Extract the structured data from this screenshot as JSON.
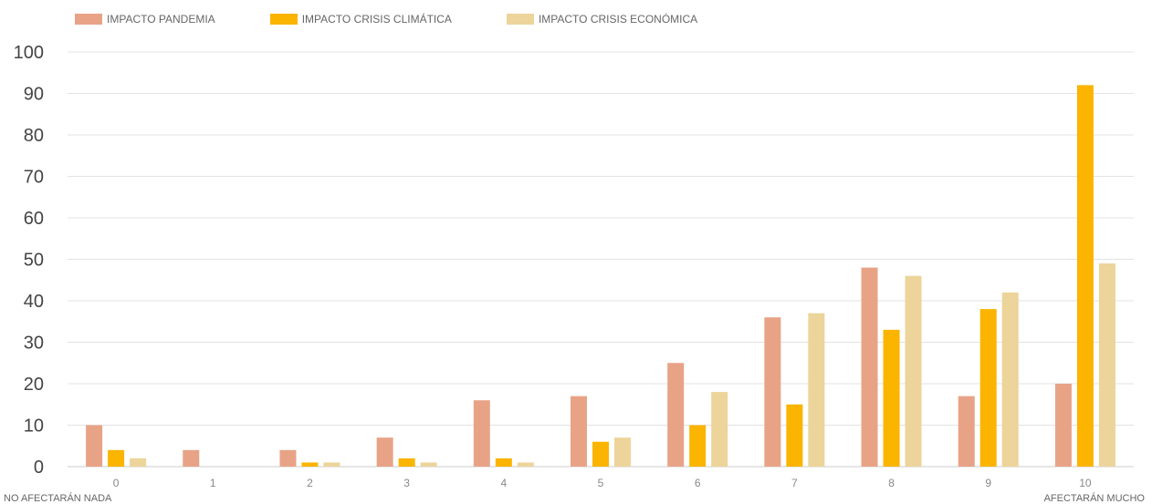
{
  "chart_data": {
    "type": "bar",
    "categories": [
      "0",
      "1",
      "2",
      "3",
      "4",
      "5",
      "6",
      "7",
      "8",
      "9",
      "10"
    ],
    "series": [
      {
        "name": "IMPACTO PANDEMIA",
        "color": "#E8A386",
        "values": [
          10,
          4,
          4,
          7,
          16,
          17,
          25,
          36,
          48,
          17,
          20
        ]
      },
      {
        "name": "IMPACTO CRISIS CLIMÁTICA",
        "color": "#FBB400",
        "values": [
          4,
          0,
          1,
          2,
          2,
          6,
          10,
          15,
          33,
          38,
          92
        ]
      },
      {
        "name": "IMPACTO CRISIS ECONÓMICA",
        "color": "#ECD49A",
        "values": [
          2,
          0,
          1,
          1,
          1,
          7,
          18,
          37,
          46,
          42,
          49
        ]
      }
    ],
    "yticks": [
      0,
      10,
      20,
      30,
      40,
      50,
      60,
      70,
      80,
      90,
      100
    ],
    "ylim": [
      0,
      100
    ],
    "grid": true,
    "legend_position": "top-left",
    "annotations": {
      "low_end_label": "NO AFECTARÁN NADA",
      "high_end_label": "AFECTARÁN MUCHO"
    }
  }
}
